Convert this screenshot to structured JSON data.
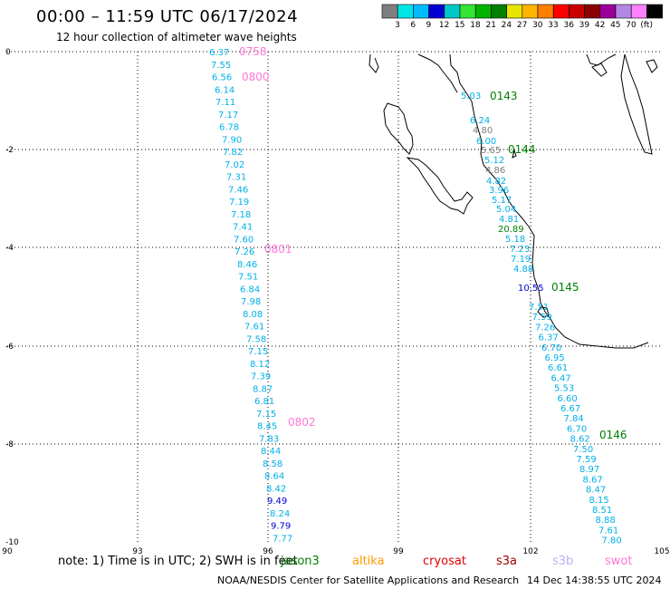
{
  "title": "00:00 – 11:59 UTC 06/17/2024",
  "subtitle": "12 hour collection of altimeter wave heights",
  "colorbar": {
    "colors": [
      "#7f7f7f",
      "#00e6e6",
      "#00bcff",
      "#0000d4",
      "#00c8c8",
      "#33e633",
      "#00b400",
      "#008000",
      "#e6e600",
      "#ffb400",
      "#ff7f00",
      "#ff0000",
      "#c80000",
      "#8b0000",
      "#9b009b",
      "#b487e6",
      "#ff80ff",
      "#000000"
    ],
    "labels": [
      "3",
      "6",
      "9",
      "12",
      "15",
      "18",
      "21",
      "24",
      "27",
      "30",
      "33",
      "36",
      "39",
      "42",
      "45",
      "70",
      "(ft)"
    ]
  },
  "axes": {
    "y_labels": [
      "0",
      "-2",
      "-4",
      "-6",
      "-8",
      "-10"
    ],
    "x_labels": [
      "90",
      "93",
      "96",
      "99",
      "102",
      "105"
    ]
  },
  "tracks": [
    {
      "time": "0758",
      "color": "#ff77d4",
      "values": [
        "6.37",
        "7.55",
        "6.56",
        "6.14",
        "7.11",
        "7.17",
        "6.78",
        "7.90",
        "7.82",
        "7.02",
        "7.31",
        "7.46",
        "7.19",
        "7.18",
        "7.41",
        "7.60",
        "7.26",
        "8.46",
        "7.51",
        "6.84",
        "7.98",
        "8.08",
        "7.61",
        "7.58",
        "7.15",
        "8.12",
        "7.39",
        "8.87",
        "6.81",
        "7.15",
        "8.45",
        "7.83",
        "8.44",
        "8.58",
        "8.64",
        "8.42",
        "9.49",
        "8.24",
        "9.79",
        "7.77"
      ],
      "more_times": [
        "0800",
        "0801",
        "0802"
      ]
    },
    {
      "time": "0143",
      "color": "#008000",
      "values": [
        "5.03",
        "6.24",
        "4.80",
        "6.00",
        "5.65",
        "5.12",
        "4.86",
        "4.82",
        "3.96",
        "5.17",
        "5.04",
        "4.81",
        "20.89",
        "5.18",
        "7.23",
        "7.19",
        "4.88",
        "10.55"
      ],
      "more_times": [
        "0144",
        "0145",
        "0146"
      ]
    },
    {
      "values": [
        "7.51",
        "7.59",
        "7.26",
        "6.37",
        "6.70",
        "6.95",
        "6.61",
        "6.47",
        "5.53",
        "6.60",
        "6.67",
        "7.84",
        "6.70",
        "8.62",
        "7.50",
        "7.59",
        "8.97",
        "8.67",
        "8.47",
        "8.15",
        "8.51",
        "8.88",
        "7.61",
        "7.80"
      ]
    }
  ],
  "note": "note: 1) Time is in UTC; 2) SWH is in feet",
  "satellites": [
    {
      "name": "jason3",
      "color": "#008000"
    },
    {
      "name": "altika",
      "color": "#ff9900"
    },
    {
      "name": "cryosat",
      "color": "#e00000"
    },
    {
      "name": "s3a",
      "color": "#a00000"
    },
    {
      "name": "s3b",
      "color": "#b4b4f0"
    },
    {
      "name": "swot",
      "color": "#ff77d4"
    }
  ],
  "credit": "NOAA/NESDIS Center for Satellite Applications and Research",
  "timestamp": "14 Dec 14:38:55 UTC 2024"
}
